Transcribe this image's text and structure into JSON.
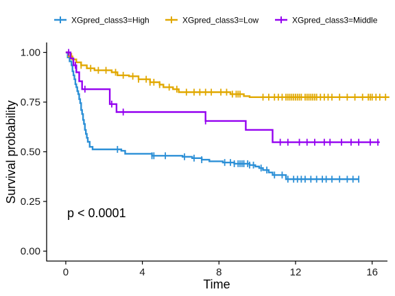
{
  "chart_data": {
    "type": "line",
    "subtype": "kaplan-meier step survival curve",
    "xlabel": "Time",
    "ylabel": "Survival probability",
    "xlim": [
      -1,
      16.8
    ],
    "ylim": [
      -0.05,
      1.05
    ],
    "xticks": [
      0,
      4,
      8,
      12,
      16
    ],
    "xtick_labels": [
      "0",
      "4",
      "8",
      "12",
      "16"
    ],
    "yticks": [
      0,
      0.25,
      0.5,
      0.75,
      1
    ],
    "ytick_labels": [
      "0.00",
      "0.25",
      "0.50",
      "0.75",
      "1.00"
    ],
    "grid": false,
    "legend_position": "top",
    "annotation": "p < 0.0001",
    "series": [
      {
        "name": "XGpred_class3=High",
        "color": "#2b8fd6",
        "steps": [
          [
            0,
            1.0
          ],
          [
            0.1,
            0.975
          ],
          [
            0.2,
            0.955
          ],
          [
            0.3,
            0.935
          ],
          [
            0.35,
            0.905
          ],
          [
            0.4,
            0.885
          ],
          [
            0.45,
            0.865
          ],
          [
            0.5,
            0.84
          ],
          [
            0.55,
            0.825
          ],
          [
            0.6,
            0.805
          ],
          [
            0.65,
            0.79
          ],
          [
            0.7,
            0.765
          ],
          [
            0.75,
            0.745
          ],
          [
            0.8,
            0.71
          ],
          [
            0.85,
            0.69
          ],
          [
            0.9,
            0.66
          ],
          [
            0.95,
            0.64
          ],
          [
            1.0,
            0.61
          ],
          [
            1.05,
            0.59
          ],
          [
            1.1,
            0.57
          ],
          [
            1.15,
            0.55
          ],
          [
            1.25,
            0.525
          ],
          [
            1.4,
            0.512
          ],
          [
            2.9,
            0.505
          ],
          [
            3.1,
            0.49
          ],
          [
            4.5,
            0.48
          ],
          [
            6.1,
            0.475
          ],
          [
            6.6,
            0.468
          ],
          [
            7.1,
            0.46
          ],
          [
            7.5,
            0.452
          ],
          [
            8.2,
            0.446
          ],
          [
            8.8,
            0.44
          ],
          [
            9.6,
            0.433
          ],
          [
            9.9,
            0.426
          ],
          [
            10.1,
            0.418
          ],
          [
            10.3,
            0.408
          ],
          [
            10.6,
            0.396
          ],
          [
            10.8,
            0.383
          ],
          [
            11.5,
            0.362
          ]
        ],
        "end_x": 15.3,
        "censor_x": [
          2.7,
          4.5,
          4.6,
          5.2,
          6.2,
          6.7,
          7.1,
          8.3,
          8.6,
          8.8,
          9.0,
          9.1,
          9.2,
          9.3,
          9.3,
          9.5,
          9.6,
          9.8,
          10.2,
          10.5,
          10.9,
          11.3,
          11.6,
          11.9,
          12.1,
          12.3,
          12.5,
          12.8,
          13.1,
          13.4,
          13.6,
          13.9,
          14.3,
          14.7,
          15.0,
          15.3
        ]
      },
      {
        "name": "XGpred_class3=Low",
        "color": "#e1a800",
        "steps": [
          [
            0,
            1.0
          ],
          [
            0.15,
            0.98
          ],
          [
            0.35,
            0.965
          ],
          [
            0.55,
            0.95
          ],
          [
            0.8,
            0.935
          ],
          [
            1.1,
            0.92
          ],
          [
            1.5,
            0.91
          ],
          [
            2.4,
            0.9
          ],
          [
            2.7,
            0.885
          ],
          [
            3.3,
            0.88
          ],
          [
            3.8,
            0.865
          ],
          [
            4.4,
            0.85
          ],
          [
            4.9,
            0.838
          ],
          [
            5.1,
            0.825
          ],
          [
            5.6,
            0.815
          ],
          [
            5.9,
            0.8
          ],
          [
            8.6,
            0.79
          ],
          [
            9.3,
            0.78
          ],
          [
            9.6,
            0.775
          ]
        ],
        "end_x": 16.9,
        "censor_x": [
          0.3,
          0.8,
          1.3,
          1.7,
          2.1,
          2.6,
          3.0,
          3.5,
          3.8,
          4.2,
          4.4,
          4.6,
          4.9,
          5.4,
          5.8,
          6.3,
          6.7,
          7.0,
          7.3,
          7.6,
          8.1,
          8.4,
          8.7,
          8.9,
          9.0,
          9.1,
          10.3,
          10.6,
          10.9,
          11.1,
          11.3,
          11.5,
          11.6,
          11.7,
          11.8,
          11.9,
          12.0,
          12.1,
          12.2,
          12.3,
          12.5,
          12.6,
          12.7,
          12.8,
          12.9,
          13.0,
          13.1,
          13.3,
          13.5,
          13.7,
          13.9,
          14.3,
          14.7,
          15.1,
          15.5,
          15.8,
          15.9,
          16.0,
          16.2,
          16.4,
          16.7
        ]
      },
      {
        "name": "XGpred_class3=Middle",
        "color": "#9400f0",
        "steps": [
          [
            0,
            1.0
          ],
          [
            0.25,
            0.97
          ],
          [
            0.4,
            0.935
          ],
          [
            0.55,
            0.9
          ],
          [
            0.7,
            0.855
          ],
          [
            0.85,
            0.815
          ],
          [
            2.3,
            0.74
          ],
          [
            2.65,
            0.7
          ],
          [
            7.3,
            0.655
          ],
          [
            9.4,
            0.61
          ],
          [
            10.8,
            0.548
          ]
        ],
        "end_x": 16.4,
        "censor_x": [
          0.15,
          0.5,
          1.0,
          2.4,
          3.0,
          7.3,
          11.2,
          11.6,
          12.2,
          12.6,
          13.0,
          13.5,
          13.8,
          14.4,
          14.9,
          15.3,
          15.9,
          16.3
        ]
      }
    ]
  }
}
